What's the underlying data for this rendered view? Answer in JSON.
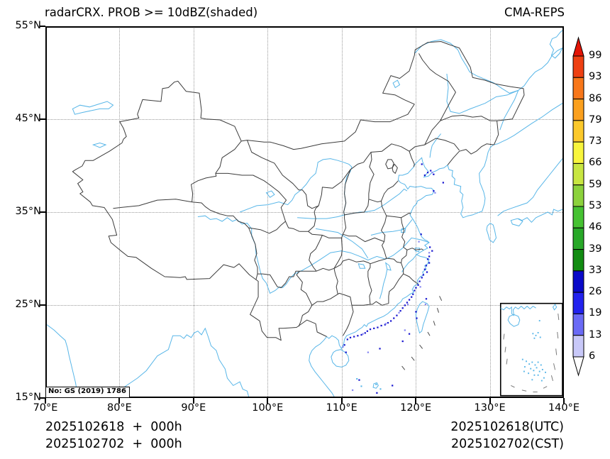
{
  "header": {
    "title": "radarCRX. PROB >= 10dBZ(shaded)",
    "brand": "CMA-REPS"
  },
  "axes": {
    "x_ticks": [
      "70°E",
      "80°E",
      "90°E",
      "100°E",
      "110°E",
      "120°E",
      "130°E",
      "140°E"
    ],
    "y_ticks": [
      "55°N",
      "45°N",
      "35°N",
      "25°N",
      "15°N"
    ],
    "xlim": [
      70,
      140
    ],
    "ylim": [
      15,
      55
    ]
  },
  "colorbar": {
    "levels": [
      6,
      13,
      19,
      26,
      33,
      39,
      46,
      53,
      59,
      66,
      73,
      79,
      86,
      93,
      99
    ],
    "colors": [
      "#c8c8f8",
      "#6a6af5",
      "#2222ee",
      "#0a0ac8",
      "#128c12",
      "#28a828",
      "#46c232",
      "#8cd23c",
      "#c8e641",
      "#f8f53c",
      "#fcc92b",
      "#fba01e",
      "#f8771a",
      "#ee4012"
    ],
    "top_color": "#e31405",
    "bottom_color": "#ffffff"
  },
  "footer": {
    "left_line1": "2025102618  +  000h",
    "left_line2": "2025102702  +  000h",
    "right_line1": "2025102618(UTC)",
    "right_line2": "2025102702(CST)"
  },
  "license": "No: GS (2019) 1786",
  "map": {
    "colors": {
      "water": "#58b6e8",
      "boundary": "#3c3c3c",
      "speck_dark": "#1a18d0",
      "speck_mid": "#8a8af2"
    },
    "prob_specks_dark": [
      [
        122.0,
        31.2
      ],
      [
        122.3,
        30.8
      ],
      [
        121.9,
        30.2
      ],
      [
        121.7,
        29.9
      ],
      [
        121.9,
        29.5
      ],
      [
        121.5,
        29.2
      ],
      [
        121.3,
        28.8
      ],
      [
        121.6,
        28.5
      ],
      [
        121.1,
        28.2
      ],
      [
        120.9,
        27.9
      ],
      [
        120.6,
        27.5
      ],
      [
        120.4,
        27.1
      ],
      [
        120.1,
        26.8
      ],
      [
        119.9,
        26.5
      ],
      [
        119.7,
        26.1
      ],
      [
        119.5,
        25.8
      ],
      [
        119.2,
        25.5
      ],
      [
        118.9,
        25.2
      ],
      [
        118.6,
        24.9
      ],
      [
        118.3,
        24.6
      ],
      [
        118.0,
        24.3
      ],
      [
        117.5,
        23.8
      ],
      [
        117.1,
        23.5
      ],
      [
        116.7,
        23.2
      ],
      [
        116.3,
        23.0
      ],
      [
        115.9,
        22.8
      ],
      [
        115.4,
        22.7
      ],
      [
        114.9,
        22.5
      ],
      [
        114.4,
        22.4
      ],
      [
        113.9,
        22.3
      ],
      [
        113.5,
        22.1
      ],
      [
        113.2,
        21.9
      ],
      [
        112.7,
        21.7
      ],
      [
        112.2,
        21.6
      ],
      [
        111.7,
        21.5
      ],
      [
        111.2,
        21.4
      ],
      [
        110.8,
        21.2
      ],
      [
        110.4,
        20.6
      ],
      [
        110.6,
        19.8
      ],
      [
        121.3,
        39.0
      ],
      [
        121.7,
        39.3
      ],
      [
        122.1,
        39.5
      ],
      [
        122.5,
        39.1
      ],
      [
        120.9,
        40.2
      ],
      [
        122.5,
        37.3
      ],
      [
        123.8,
        38.2
      ],
      [
        120.8,
        32.6
      ],
      [
        120.2,
        23.5
      ],
      [
        120.1,
        24.2
      ],
      [
        118.3,
        21.0
      ],
      [
        115.2,
        20.2
      ],
      [
        116.9,
        16.2
      ],
      [
        112.4,
        16.8
      ],
      [
        114.8,
        15.4
      ],
      [
        119.2,
        21.8
      ],
      [
        121.5,
        25.6
      ]
    ],
    "prob_specks_mid": [
      [
        121.9,
        30.6
      ],
      [
        120.7,
        26.9
      ],
      [
        119.0,
        25.0
      ],
      [
        116.0,
        22.9
      ],
      [
        112.9,
        21.8
      ],
      [
        122.3,
        39.3
      ],
      [
        117.8,
        24.1
      ],
      [
        110.2,
        20.4
      ],
      [
        121.4,
        25.0
      ],
      [
        118.6,
        22.2
      ],
      [
        113.6,
        19.8
      ],
      [
        120.5,
        31.8
      ],
      [
        122.7,
        37.1
      ],
      [
        111.5,
        15.7
      ]
    ],
    "sea_islands": [
      [
        420,
        380
      ],
      [
        426,
        388
      ],
      [
        446,
        386
      ],
      [
        452,
        391
      ]
    ],
    "sea_dashes": [
      [
        533,
        291,
        536,
        296
      ],
      [
        530,
        304,
        532,
        309
      ],
      [
        525,
        318,
        527,
        323
      ],
      [
        517,
        330,
        520,
        334
      ],
      [
        506,
        344,
        510,
        348
      ],
      [
        495,
        357,
        499,
        361
      ],
      [
        482,
        367,
        486,
        371
      ]
    ],
    "inset_islands": [
      [
        659,
        331
      ],
      [
        663,
        333
      ],
      [
        666,
        330
      ],
      [
        661,
        336
      ],
      [
        669,
        335
      ],
      [
        668,
        317
      ],
      [
        650,
        361
      ],
      [
        654,
        364
      ],
      [
        658,
        362
      ],
      [
        662,
        365
      ],
      [
        666,
        362
      ],
      [
        670,
        365
      ],
      [
        656,
        369
      ],
      [
        660,
        371
      ],
      [
        664,
        368
      ],
      [
        668,
        372
      ],
      [
        653,
        374
      ],
      [
        661,
        376
      ],
      [
        666,
        376
      ],
      [
        672,
        370
      ],
      [
        648,
        367
      ],
      [
        674,
        379
      ],
      [
        658,
        381
      ],
      [
        645,
        359
      ],
      [
        647,
        372
      ],
      [
        676,
        373
      ],
      [
        671,
        382
      ]
    ],
    "inset_dashes": [
      [
        694,
        310,
        695,
        317
      ],
      [
        693,
        330,
        694,
        337
      ],
      [
        691,
        348,
        692,
        355
      ],
      [
        688,
        364,
        690,
        371
      ],
      [
        685,
        377,
        687,
        383
      ],
      [
        621,
        332,
        620,
        338
      ],
      [
        623,
        346,
        622,
        352
      ],
      [
        625,
        359,
        624,
        365
      ],
      [
        630,
        388,
        635,
        390
      ],
      [
        645,
        393,
        651,
        394
      ],
      [
        660,
        395,
        666,
        395
      ],
      [
        674,
        391,
        679,
        389
      ]
    ]
  }
}
